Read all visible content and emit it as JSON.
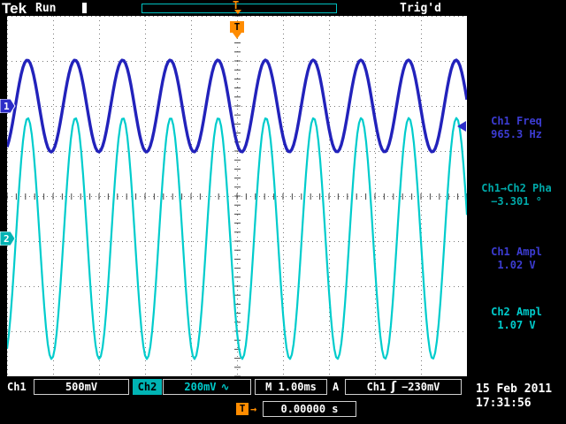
{
  "header": {
    "logo": "Tek",
    "acq_state": "Run",
    "trig_status": "Trig'd",
    "trigger_marker": "T"
  },
  "channels": [
    {
      "number": "1",
      "color": "#2d2dc8"
    },
    {
      "number": "2",
      "color": "#00b4b4"
    }
  ],
  "measurements": [
    {
      "label": "Ch1 Freq",
      "value": "965.3 Hz",
      "color": "#3c3cd2"
    },
    {
      "label": "Ch1→Ch2 Pha",
      "value": "−3.301 °",
      "color": "#00a8a8"
    },
    {
      "label": "Ch1 Ampl",
      "value": "1.02 V",
      "color": "#3c3cd2"
    },
    {
      "label": "Ch2 Ampl",
      "value": "1.07 V",
      "color": "#00cccc"
    }
  ],
  "status_bar": {
    "ch1_label": "Ch1",
    "ch1_scale": "500mV",
    "ch2_label": "Ch2",
    "ch2_scale": "200mV",
    "ch2_coupling": "∿",
    "timebase": "M 1.00ms",
    "trig_prefix": "A",
    "trig_source": "Ch1",
    "trig_slope": "ʃ",
    "trig_level": "−230mV"
  },
  "footer": {
    "trig_marker": "T",
    "arrow": "→",
    "trig_position": "0.00000 s",
    "date": "15 Feb 2011",
    "time": "17:31:56"
  },
  "chart_data": {
    "type": "line",
    "title": "Oscilloscope waveform display",
    "x_divisions": 10,
    "y_divisions": 8,
    "timebase_per_div": "1.00 ms",
    "trigger": {
      "source": "Ch1",
      "level": "−230mV",
      "position": "0.00000 s",
      "status": "Trig'd"
    },
    "series": [
      {
        "name": "Ch1",
        "color": "#2222bb",
        "volts_per_div": "500mV",
        "frequency_hz": 965.3,
        "amplitude_v_pp": 1.02,
        "center_div": 2.0,
        "amp_div": 1.02,
        "cycles": 9.653,
        "phase_rad": -1.1,
        "stroke_width": 3.4
      },
      {
        "name": "Ch2",
        "color": "#00cccc",
        "volts_per_div": "200mV",
        "frequency_hz": 965.3,
        "amplitude_v_pp": 1.07,
        "center_div": 4.94,
        "amp_div": 2.675,
        "cycles": 9.653,
        "phase_rad": -1.158,
        "stroke_width": 2.2
      }
    ]
  }
}
